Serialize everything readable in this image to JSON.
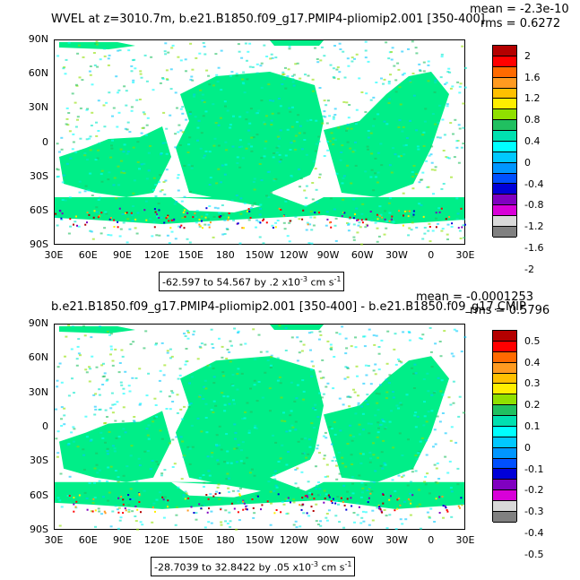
{
  "panels": [
    {
      "title": "WVEL at z=3010.7m, b.e21.B1850.f09_g17.PMIP4-pliomip2.001 [350-400]",
      "mean": "mean = -2.3e-10",
      "rms": "rms = 0.6272",
      "range": "-62.597 to 54.567 by .2 x10",
      "range_exp": "-3",
      "range_unit": " cm s",
      "range_unit_exp": "-1",
      "colorbar_labels": [
        "2",
        "1.6",
        "1.2",
        "0.8",
        "0.4",
        "0",
        "-0.4",
        "-0.8",
        "-1.2",
        "-1.6",
        "-2"
      ]
    },
    {
      "title": "b.e21.B1850.f09_g17.PMIP4-pliomip2.001 [350-400] - b.e21.B1850.f09_g17.CMIP",
      "mean": "mean = -0.0001253",
      "rms": "rms = 0.5796",
      "range": "-28.7039 to 32.8422 by .05 x10",
      "range_exp": "-3",
      "range_unit": " cm s",
      "range_unit_exp": "-1",
      "colorbar_labels": [
        "0.5",
        "0.4",
        "0.3",
        "0.2",
        "0.1",
        "0",
        "-0.1",
        "-0.2",
        "-0.3",
        "-0.4",
        "-0.5"
      ]
    }
  ],
  "lat_labels": [
    "90N",
    "60N",
    "30N",
    "0",
    "30S",
    "60S",
    "90S"
  ],
  "lon_labels": [
    "30E",
    "60E",
    "90E",
    "120E",
    "150E",
    "180",
    "150W",
    "120W",
    "90W",
    "60W",
    "30W",
    "0",
    "30E"
  ],
  "colorbar_colors": [
    "#b40000",
    "#ff0000",
    "#ff6a00",
    "#ff9a20",
    "#ffc000",
    "#ffee00",
    "#90e000",
    "#20c060",
    "#00e0b0",
    "#00ffff",
    "#00c8ff",
    "#0096ff",
    "#0050ff",
    "#0000d8",
    "#8000c0",
    "#d800d8",
    "#d9d9d9",
    "#808080"
  ],
  "colors": {
    "ocean_main": "#00ee88",
    "ocean_alt": "#00e8c8",
    "land": "#ffffff"
  }
}
